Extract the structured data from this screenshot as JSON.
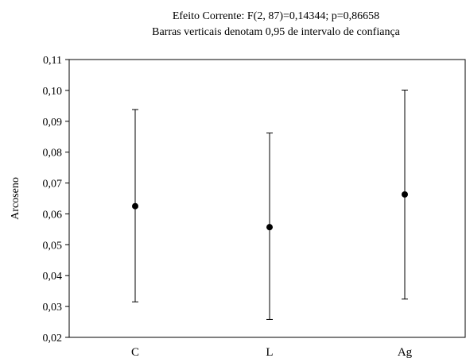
{
  "chart_data": {
    "type": "scatter",
    "title": "Efeito Corrente: F(2, 87)=0,14344; p=0,86658",
    "subtitle": "Barras verticais denotam 0,95 de intervalo de confiança",
    "xlabel": "",
    "ylabel": "Arcoseno",
    "ylim": [
      0.02,
      0.11
    ],
    "yticks": [
      0.02,
      0.03,
      0.04,
      0.05,
      0.06,
      0.07,
      0.08,
      0.09,
      0.1,
      0.11
    ],
    "ytick_labels": [
      "0,02",
      "0,03",
      "0,04",
      "0,05",
      "0,06",
      "0,07",
      "0,08",
      "0,09",
      "0,10",
      "0,11"
    ],
    "categories": [
      "C",
      "L",
      "Ag"
    ],
    "series": [
      {
        "means": [
          0.0625,
          0.0557,
          0.0663
        ],
        "ci_lower": [
          0.0315,
          0.0258,
          0.0324
        ],
        "ci_upper": [
          0.0938,
          0.0862,
          0.1001
        ]
      }
    ],
    "grid": false,
    "legend": "none"
  }
}
